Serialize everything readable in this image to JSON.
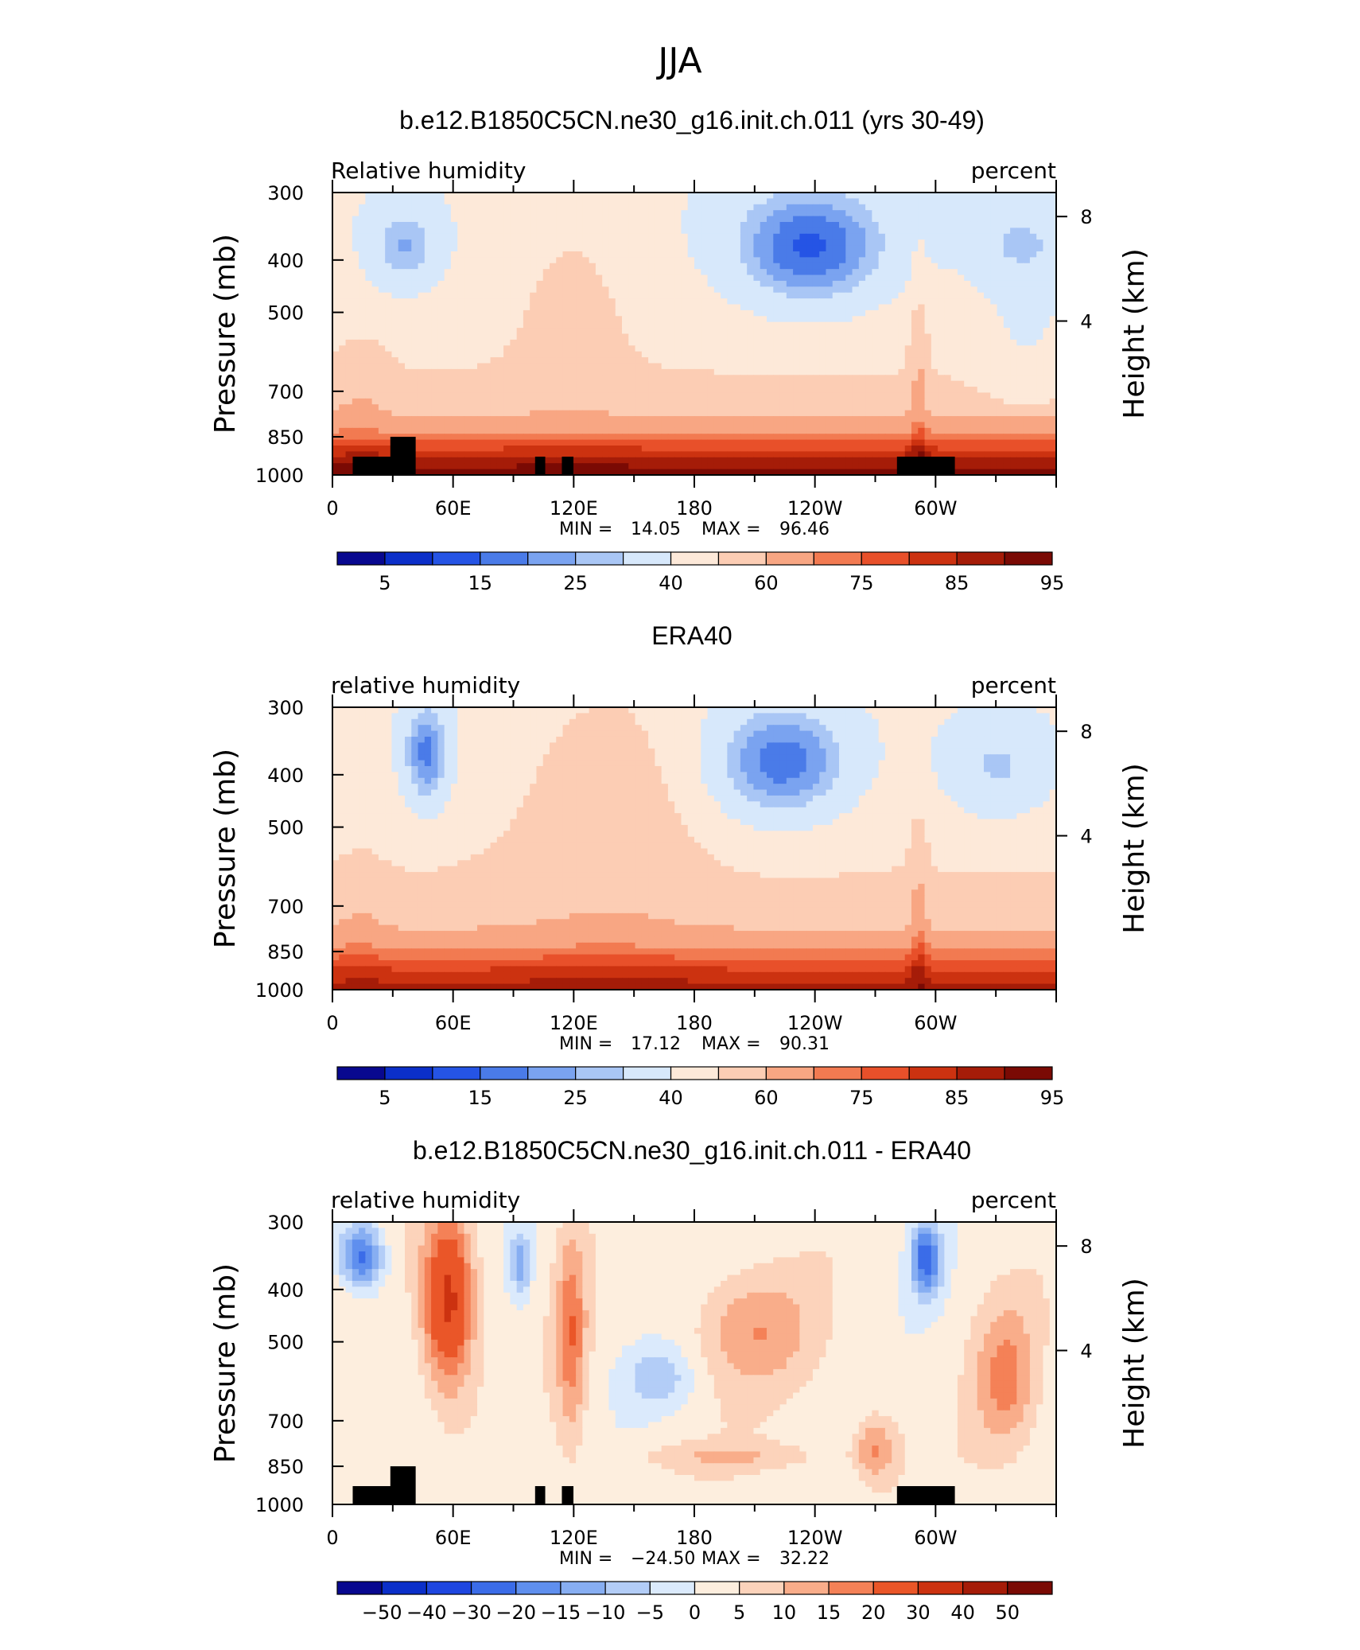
{
  "figure_title": "JJA",
  "chart_data": [
    {
      "type": "heatmap",
      "title": "b.e12.B1850C5CN.ne30_g16.init.ch.011 (yrs 30-49)",
      "left_label": "Relative humidity",
      "right_label": "percent",
      "ylabel": "Pressure (mb)",
      "ylabel_right": "Height (km)",
      "x_ticks": [
        "0",
        "60E",
        "120E",
        "180",
        "120W",
        "60W"
      ],
      "y_ticks": [
        "300",
        "400",
        "500",
        "700",
        "850",
        "1000"
      ],
      "height_ticks": [
        "8",
        "4"
      ],
      "stats": {
        "min_label": "MIN =",
        "min_value": "14.05",
        "max_label": "MAX =",
        "max_value": "96.46"
      },
      "colorbar_labels": [
        "5",
        "15",
        "25",
        "40",
        "60",
        "75",
        "85",
        "95"
      ],
      "palette": [
        "#08088f",
        "#0b2fc9",
        "#2554e5",
        "#4a7be8",
        "#7aa3f0",
        "#a9c6f5",
        "#d7e8fb",
        "#fde9d9",
        "#fccdb4",
        "#f8a683",
        "#f27a51",
        "#e8502a",
        "#cc3210",
        "#a51c08",
        "#7a0a04"
      ],
      "value_range": [
        14.05,
        96.46
      ],
      "terrain": true
    },
    {
      "type": "heatmap",
      "title": "ERA40",
      "left_label": "relative humidity",
      "right_label": "percent",
      "ylabel": "Pressure (mb)",
      "ylabel_right": "Height (km)",
      "x_ticks": [
        "0",
        "60E",
        "120E",
        "180",
        "120W",
        "60W"
      ],
      "y_ticks": [
        "300",
        "400",
        "500",
        "700",
        "850",
        "1000"
      ],
      "height_ticks": [
        "8",
        "4"
      ],
      "stats": {
        "min_label": "MIN =",
        "min_value": "17.12",
        "max_label": "MAX =",
        "max_value": "90.31"
      },
      "colorbar_labels": [
        "5",
        "15",
        "25",
        "40",
        "60",
        "75",
        "85",
        "95"
      ],
      "palette": [
        "#08088f",
        "#0b2fc9",
        "#2554e5",
        "#4a7be8",
        "#7aa3f0",
        "#a9c6f5",
        "#d7e8fb",
        "#fde9d9",
        "#fccdb4",
        "#f8a683",
        "#f27a51",
        "#e8502a",
        "#cc3210",
        "#a51c08",
        "#7a0a04"
      ],
      "value_range": [
        17.12,
        90.31
      ],
      "terrain": false
    },
    {
      "type": "heatmap",
      "title": "b.e12.B1850C5CN.ne30_g16.init.ch.011 - ERA40",
      "left_label": "relative humidity",
      "right_label": "percent",
      "ylabel": "Pressure (mb)",
      "ylabel_right": "Height (km)",
      "x_ticks": [
        "0",
        "60E",
        "120E",
        "180",
        "120W",
        "60W"
      ],
      "y_ticks": [
        "300",
        "400",
        "500",
        "700",
        "850",
        "1000"
      ],
      "height_ticks": [
        "8",
        "4"
      ],
      "stats": {
        "min_label": "MIN =",
        "min_value": "−24.50",
        "max_label": "MAX =",
        "max_value": "32.22"
      },
      "colorbar_labels": [
        "−50",
        "−40",
        "−30",
        "−20",
        "−15",
        "−10",
        "−5",
        "0",
        "5",
        "10",
        "15",
        "20",
        "30",
        "40",
        "50"
      ],
      "palette": [
        "#08088f",
        "#0b2fc9",
        "#1e46e0",
        "#3b6ce8",
        "#5f8fee",
        "#87aef2",
        "#b3cdf7",
        "#dbeafc",
        "#fdeede",
        "#fcd3bb",
        "#f9ad8a",
        "#f48157",
        "#ea5628",
        "#cc3210",
        "#a51c08",
        "#7a0a04"
      ],
      "value_range": [
        -24.5,
        32.22
      ],
      "terrain": true
    }
  ]
}
